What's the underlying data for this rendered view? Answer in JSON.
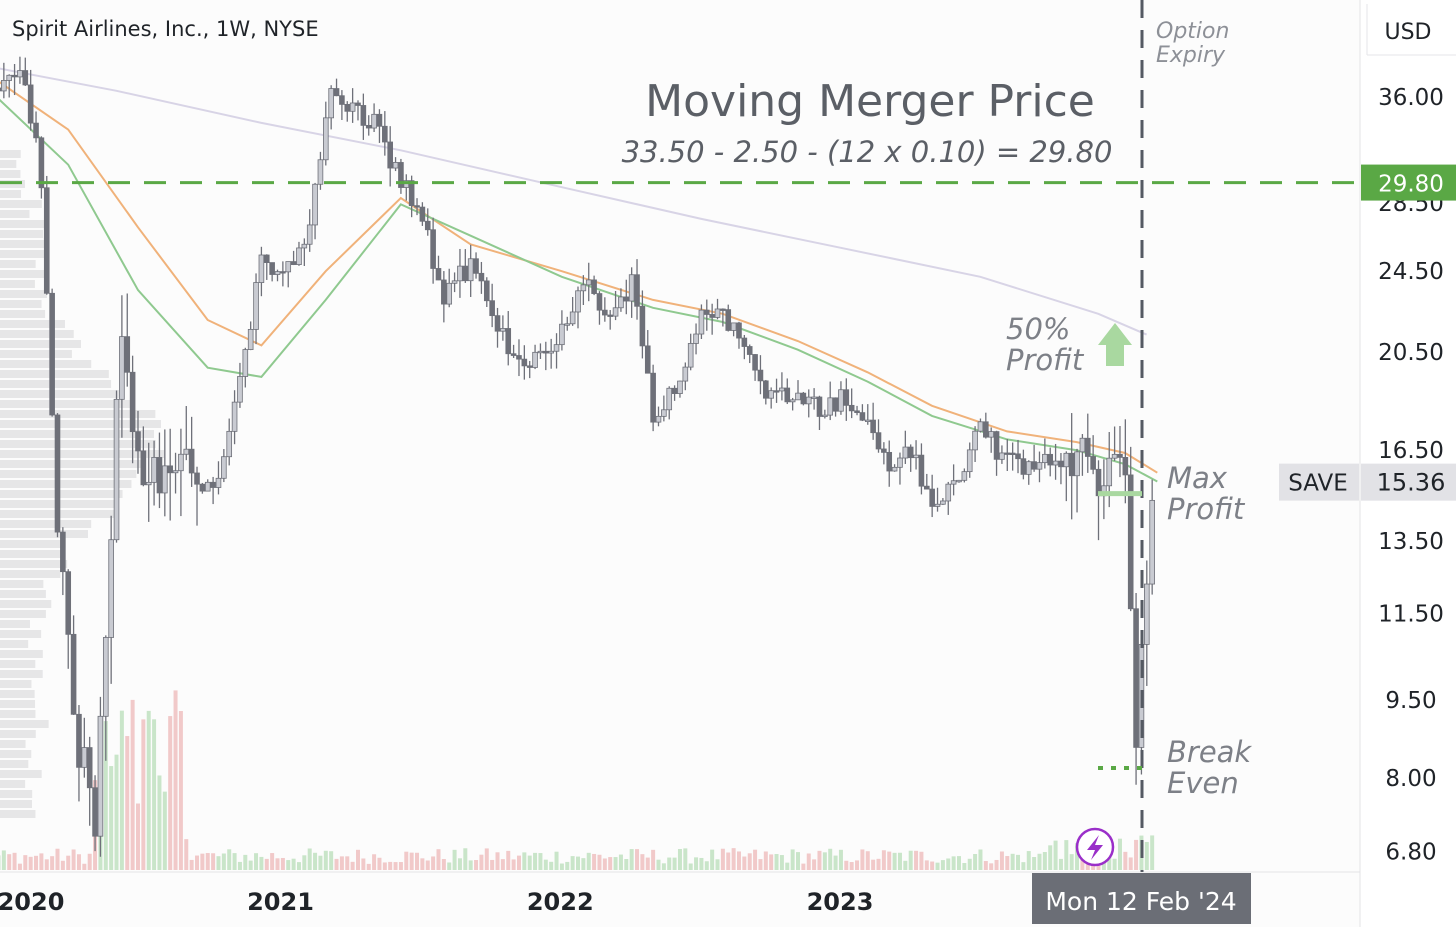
{
  "header": {
    "symbol_label": "Spirit Airlines, Inc., 1W, NYSE"
  },
  "annotations": {
    "title": "Moving Merger Price",
    "formula": "33.50 - 2.50 - (12 x 0.10) = 29.80",
    "option_expiry_line1": "Option",
    "option_expiry_line2": "Expiry",
    "fifty_line1": "50%",
    "fifty_line2": "Profit",
    "max_line1": "Max",
    "max_line2": "Profit",
    "break_line1": "Break",
    "break_line2": "Even"
  },
  "price_axis": {
    "currency": "USD",
    "ticks": [
      "36.00",
      "28.50",
      "24.50",
      "20.50",
      "16.50",
      "13.50",
      "11.50",
      "9.50",
      "8.00",
      "6.80"
    ],
    "tick_values": [
      36.0,
      28.5,
      24.5,
      20.5,
      16.5,
      13.5,
      11.5,
      9.5,
      8.0,
      6.8
    ],
    "merger_price_label": "29.80",
    "ticker_label": "SAVE",
    "last_price_label": "15.36"
  },
  "time_axis": {
    "ticks": [
      "2020",
      "2021",
      "2022",
      "2023"
    ],
    "crosshair_label": "Mon 12 Feb '24"
  },
  "colors": {
    "candle": "#6e7079",
    "candle_light": "#c9cbd2",
    "ma_orange": "#f0b27a",
    "ma_green": "#8fc98f",
    "ma_lilac": "#d8d4e6",
    "merger_green": "#5aa845",
    "volume_green": "#c9e5c9",
    "volume_red": "#f1c9c9",
    "profile": "#d3d3d6",
    "bolt_purple": "#9a2fc9"
  },
  "chart_data": {
    "type": "candlestick",
    "title": "Moving Merger Price",
    "subtitle": "33.50 - 2.50 - (12 x 0.10) = 29.80",
    "symbol": "SAVE",
    "interval": "1W",
    "exchange": "NYSE",
    "scale": "log",
    "ylim": [
      6.5,
      40
    ],
    "x_range": [
      "2019-12",
      "2024-02"
    ],
    "merger_price": 29.8,
    "last_price": 15.36,
    "crosshair_date": "Mon 12 Feb '24",
    "price_path": [
      [
        "2019-12-09",
        35.5
      ],
      [
        "2020-01-06",
        38.0
      ],
      [
        "2020-02-03",
        37.5
      ],
      [
        "2020-02-24",
        30.0
      ],
      [
        "2020-03-16",
        14.0
      ],
      [
        "2020-04-06",
        9.0
      ],
      [
        "2020-05-04",
        7.5
      ],
      [
        "2020-06-08",
        22.0
      ],
      [
        "2020-07-06",
        15.0
      ],
      [
        "2020-08-03",
        16.0
      ],
      [
        "2020-09-07",
        15.5
      ],
      [
        "2020-10-05",
        15.0
      ],
      [
        "2020-11-09",
        19.0
      ],
      [
        "2020-12-07",
        25.0
      ],
      [
        "2021-01-04",
        24.5
      ],
      [
        "2021-02-08",
        27.0
      ],
      [
        "2021-03-08",
        36.5
      ],
      [
        "2021-04-05",
        35.0
      ],
      [
        "2021-05-03",
        34.0
      ],
      [
        "2021-06-07",
        30.0
      ],
      [
        "2021-07-05",
        27.5
      ],
      [
        "2021-08-02",
        23.0
      ],
      [
        "2021-09-06",
        25.0
      ],
      [
        "2021-10-04",
        22.0
      ],
      [
        "2021-11-08",
        20.0
      ],
      [
        "2021-12-06",
        20.5
      ],
      [
        "2022-01-03",
        21.5
      ],
      [
        "2022-02-07",
        24.0
      ],
      [
        "2022-03-07",
        22.0
      ],
      [
        "2022-04-04",
        24.0
      ],
      [
        "2022-05-02",
        18.0
      ],
      [
        "2022-06-06",
        19.0
      ],
      [
        "2022-07-04",
        22.5
      ],
      [
        "2022-08-01",
        22.5
      ],
      [
        "2022-09-05",
        20.0
      ],
      [
        "2022-10-03",
        18.5
      ],
      [
        "2022-11-07",
        19.0
      ],
      [
        "2022-12-05",
        18.0
      ],
      [
        "2023-01-02",
        18.5
      ],
      [
        "2023-02-06",
        17.5
      ],
      [
        "2023-03-06",
        16.0
      ],
      [
        "2023-04-03",
        16.5
      ],
      [
        "2023-05-01",
        14.5
      ],
      [
        "2023-06-05",
        15.5
      ],
      [
        "2023-07-03",
        17.5
      ],
      [
        "2023-08-07",
        16.0
      ],
      [
        "2023-09-04",
        16.0
      ],
      [
        "2023-10-02",
        16.0
      ],
      [
        "2023-11-06",
        16.2
      ],
      [
        "2023-12-04",
        15.8
      ],
      [
        "2024-01-08",
        16.0
      ],
      [
        "2024-01-22",
        8.8
      ],
      [
        "2024-02-05",
        13.0
      ],
      [
        "2024-02-19",
        15.36
      ]
    ],
    "moving_averages": [
      {
        "color": "#f0b27a",
        "points": [
          [
            "2019-12-02",
            38.5
          ],
          [
            "2020-03-30",
            33.5
          ],
          [
            "2020-06-29",
            27.0
          ],
          [
            "2020-09-28",
            22.0
          ],
          [
            "2020-12-07",
            20.8
          ],
          [
            "2021-03-01",
            24.5
          ],
          [
            "2021-06-07",
            28.8
          ],
          [
            "2021-09-06",
            26.0
          ],
          [
            "2022-01-03",
            24.5
          ],
          [
            "2022-05-02",
            23.0
          ],
          [
            "2022-08-01",
            22.3
          ],
          [
            "2022-11-07",
            21.0
          ],
          [
            "2023-02-06",
            19.6
          ],
          [
            "2023-05-01",
            18.2
          ],
          [
            "2023-08-07",
            17.2
          ],
          [
            "2023-11-06",
            16.8
          ],
          [
            "2024-01-08",
            16.4
          ],
          [
            "2024-02-19",
            15.7
          ]
        ]
      },
      {
        "color": "#8fc98f",
        "points": [
          [
            "2019-12-02",
            37.5
          ],
          [
            "2020-03-30",
            31.0
          ],
          [
            "2020-06-29",
            23.5
          ],
          [
            "2020-09-28",
            19.8
          ],
          [
            "2020-12-07",
            19.4
          ],
          [
            "2021-03-01",
            23.0
          ],
          [
            "2021-06-07",
            28.4
          ],
          [
            "2021-09-06",
            26.5
          ],
          [
            "2022-01-03",
            24.2
          ],
          [
            "2022-05-02",
            22.6
          ],
          [
            "2022-08-01",
            21.9
          ],
          [
            "2022-11-07",
            20.6
          ],
          [
            "2023-02-06",
            19.2
          ],
          [
            "2023-05-01",
            17.8
          ],
          [
            "2023-08-07",
            16.9
          ],
          [
            "2023-11-06",
            16.5
          ],
          [
            "2024-01-08",
            16.0
          ],
          [
            "2024-02-19",
            15.4
          ]
        ]
      },
      {
        "color": "#d8d4e6",
        "points": [
          [
            "2019-12-02",
            38.7
          ],
          [
            "2020-06-01",
            36.5
          ],
          [
            "2020-12-07",
            34.0
          ],
          [
            "2021-06-07",
            32.0
          ],
          [
            "2022-01-03",
            29.5
          ],
          [
            "2022-07-04",
            27.5
          ],
          [
            "2023-01-02",
            25.8
          ],
          [
            "2023-07-03",
            24.2
          ],
          [
            "2023-12-04",
            22.3
          ],
          [
            "2024-02-05",
            21.3
          ]
        ]
      }
    ]
  }
}
